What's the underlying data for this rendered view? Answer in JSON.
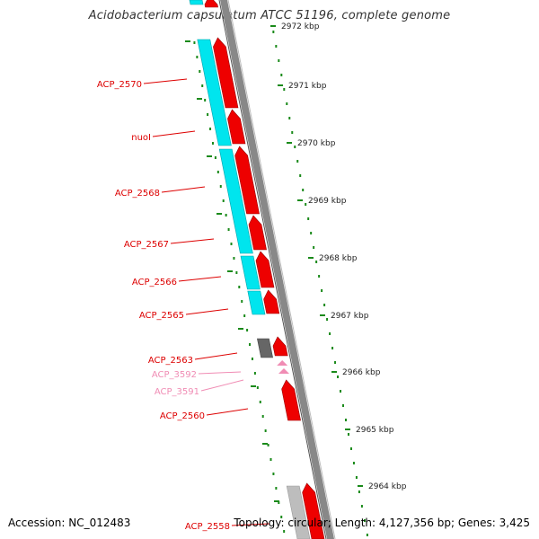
{
  "title": "Acidobacterium capsulatum ATCC 51196, complete genome",
  "footer": {
    "accession": "Accession: NC_012483",
    "stats": "Topology: circular; Length: 4,127,356 bp; Genes: 3,425"
  },
  "scale_ticks": [
    {
      "label": "2972 kbp"
    },
    {
      "label": "2971 kbp"
    },
    {
      "label": "2970 kbp"
    },
    {
      "label": "2969 kbp"
    },
    {
      "label": "2968 kbp"
    },
    {
      "label": "2967 kbp"
    },
    {
      "label": "2966 kbp"
    },
    {
      "label": "2965 kbp"
    },
    {
      "label": "2964 kbp"
    }
  ],
  "gene_labels": [
    {
      "label": "ACP_2570",
      "color": "#dd0000"
    },
    {
      "label": "nuoI",
      "color": "#dd0000"
    },
    {
      "label": "ACP_2568",
      "color": "#dd0000"
    },
    {
      "label": "ACP_2567",
      "color": "#dd0000"
    },
    {
      "label": "ACP_2566",
      "color": "#dd0000"
    },
    {
      "label": "ACP_2565",
      "color": "#dd0000"
    },
    {
      "label": "ACP_2563",
      "color": "#dd0000"
    },
    {
      "label": "ACP_3592",
      "color": "#f08cb4"
    },
    {
      "label": "ACP_3591",
      "color": "#f08cb4"
    },
    {
      "label": "ACP_2560",
      "color": "#dd0000"
    },
    {
      "label": "ACP_2558",
      "color": "#dd0000"
    }
  ],
  "colors": {
    "cds": "#ee0000",
    "cog": "#00e5ee",
    "pseudo": "#777777",
    "rna": "#f08cb4",
    "backbone": "#888888",
    "scale": "#1a8a1a"
  }
}
